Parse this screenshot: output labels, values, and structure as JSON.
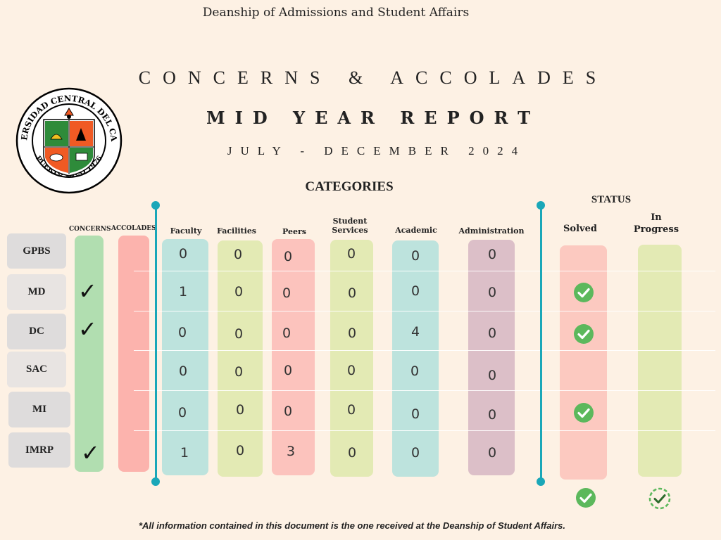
{
  "header": {
    "department": "Deanship of Admissions and Student Affairs",
    "title": "CONCERNS & ACCOLADES",
    "subtitle": "MID YEAR REPORT",
    "period": "JULY - DECEMBER 2024"
  },
  "seal": {
    "ring_text_top": "UNIVERSIDAD CENTRAL DEL CARIBE",
    "ring_text_bottom": "PUERTO RICO 1976",
    "colors": {
      "green": "#2e8b3a",
      "orange": "#f05a24",
      "ring": "#000000"
    }
  },
  "sections": {
    "categories": "CATEGORIES",
    "status": "STATUS"
  },
  "columns": {
    "concerns": "CONCERNS",
    "accolades": "ACCOLADES",
    "faculty": "Faculty",
    "facilities": "Facilities",
    "peers": "Peers",
    "student_services_1": "Student",
    "student_services_2": "Services",
    "academic": "Academic",
    "administration": "Administration",
    "solved": "Solved",
    "in_progress_1": "In",
    "in_progress_2": "Progress"
  },
  "rows": [
    {
      "label": "GPBS",
      "concern": false,
      "faculty": "0",
      "facilities": "0",
      "peers": "0",
      "student_services": "0",
      "academic": "0",
      "administration": "0",
      "solved": false
    },
    {
      "label": "MD",
      "concern": true,
      "faculty": "1",
      "facilities": "0",
      "peers": "0",
      "student_services": "0",
      "academic": "0",
      "administration": "0",
      "solved": true
    },
    {
      "label": "DC",
      "concern": true,
      "faculty": "0",
      "facilities": "0",
      "peers": "0",
      "student_services": "0",
      "academic": "4",
      "administration": "0",
      "solved": true
    },
    {
      "label": "SAC",
      "concern": false,
      "faculty": "0",
      "facilities": "0",
      "peers": "0",
      "student_services": "0",
      "academic": "0",
      "administration": "0",
      "solved": false
    },
    {
      "label": "MI",
      "concern": false,
      "faculty": "0",
      "facilities": "0",
      "peers": "0",
      "student_services": "0",
      "academic": "0",
      "administration": "0",
      "solved": true
    },
    {
      "label": "IMRP",
      "concern": true,
      "faculty": "1",
      "facilities": "0",
      "peers": "3",
      "student_services": "0",
      "academic": "0",
      "administration": "0",
      "solved": false
    }
  ],
  "legend": {
    "solved_icon": "check-circle-icon",
    "in_progress_icon": "dashed-check-circle-icon"
  },
  "colors": {
    "background": "#fdf1e4",
    "concerns_col": "#b1deb0",
    "accolades_col": "#fcb3ad",
    "faculty_col": "#bde3dd",
    "facilities_col": "#e3eab4",
    "peers_col": "#fcc3bd",
    "student_services_col": "#e3eab4",
    "academic_col": "#bde3dd",
    "administration_col": "#dcbfc8",
    "solved_col": "#fcc9c0",
    "in_progress_col": "#e3eab4",
    "divider": "#1aa7b8",
    "check_green": "#5cb85c"
  },
  "footnote": "*All information contained in this document is the one received at the Deanship of Student Affairs."
}
